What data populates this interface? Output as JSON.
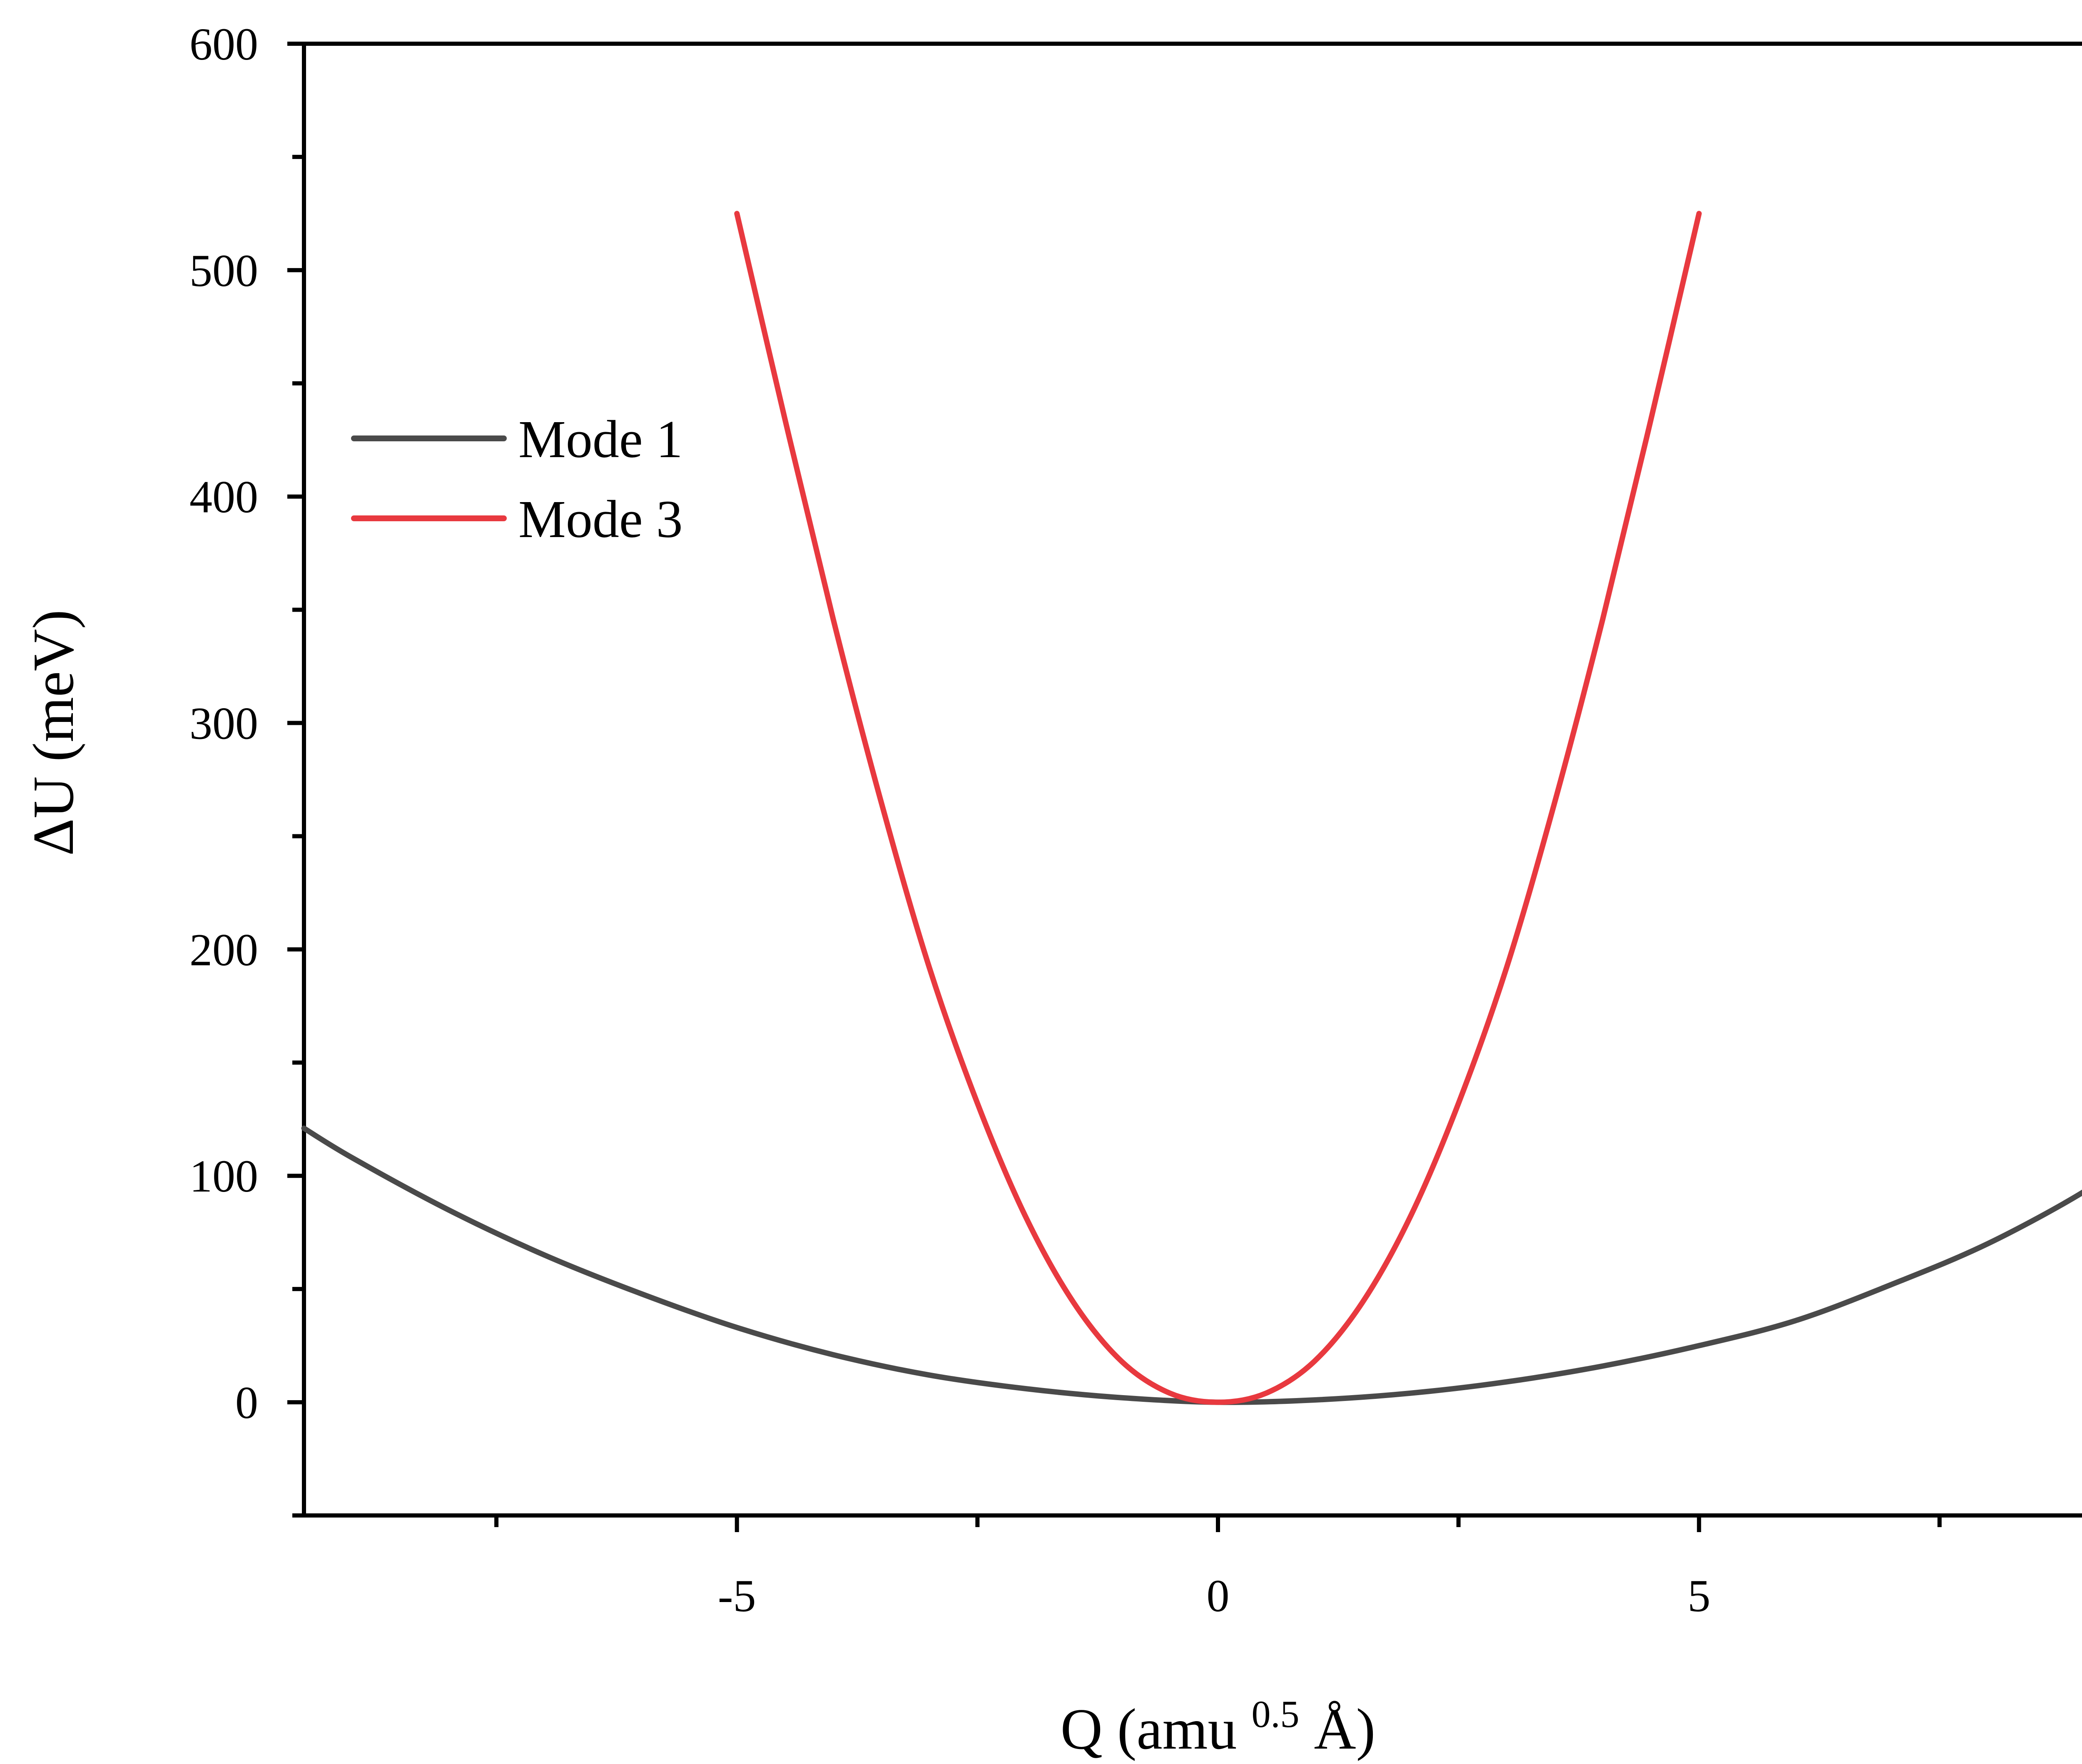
{
  "chart_data": {
    "type": "line",
    "title": "",
    "xlabel": {
      "prefix": "Q (amu",
      "sup": "0.5",
      "suffix": "Å)"
    },
    "ylabel": "ΔU (meV)",
    "xlim": [
      -9.5,
      9.5
    ],
    "ylim": [
      -50,
      600
    ],
    "x_major_ticks": [
      -5,
      0,
      5
    ],
    "x_tick_labels": [
      "-5",
      "0",
      "5"
    ],
    "x_minor_ticks": [
      -7.5,
      -2.5,
      2.5,
      7.5
    ],
    "y_major_ticks": [
      0,
      100,
      200,
      300,
      400,
      500,
      600
    ],
    "y_tick_labels": [
      "0",
      "100",
      "200",
      "300",
      "400",
      "500",
      "600"
    ],
    "y_minor_ticks": [
      -50,
      50,
      150,
      250,
      350,
      450,
      550
    ],
    "grid": false,
    "legend": {
      "position": "upper-left"
    },
    "series": [
      {
        "name": "Mode 1",
        "color": "#4a4a4a",
        "x": [
          -9.5,
          -9,
          -8,
          -7,
          -6,
          -5,
          -4,
          -3,
          -2,
          -1,
          0,
          1,
          2,
          3,
          4,
          5,
          6,
          7,
          8,
          9,
          9.5
        ],
        "y": [
          121,
          108,
          85,
          65,
          48,
          33,
          21,
          12,
          6,
          2,
          0,
          1,
          4,
          9,
          16,
          25,
          36,
          52,
          70,
          93,
          109
        ]
      },
      {
        "name": "Mode 3",
        "color": "#e8393f",
        "x": [
          -5,
          -4.5,
          -4,
          -3.5,
          -3,
          -2.5,
          -2,
          -1.5,
          -1,
          -0.5,
          0,
          0.5,
          1,
          1.5,
          2,
          2.5,
          3,
          3.5,
          4,
          4.5,
          5
        ],
        "y": [
          525,
          434,
          346,
          265,
          192,
          132,
          82,
          44,
          18,
          4,
          0,
          4,
          18,
          44,
          82,
          132,
          192,
          265,
          346,
          434,
          525
        ]
      }
    ]
  }
}
